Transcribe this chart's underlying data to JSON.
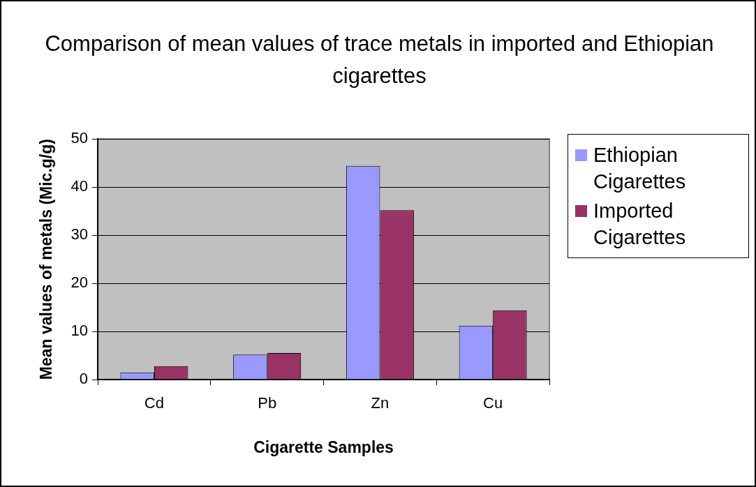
{
  "chart_data": {
    "type": "bar",
    "title": "Comparison of mean values of trace metals in imported and Ethiopian cigarettes",
    "xlabel": "Cigarette Samples",
    "ylabel": "Mean values of metals (Mic.g/g)",
    "categories": [
      "Cd",
      "Pb",
      "Zn",
      "Cu"
    ],
    "series": [
      {
        "name": "Ethiopian Cigarettes",
        "color": "#9999ff",
        "values": [
          1.5,
          5.2,
          44.4,
          11.2
        ]
      },
      {
        "name": "Imported Cigarettes",
        "color": "#993366",
        "values": [
          2.8,
          5.5,
          35.2,
          14.4
        ]
      }
    ],
    "ylim": [
      0,
      50
    ],
    "yticks": [
      0,
      10,
      20,
      30,
      40,
      50
    ],
    "grid": "y",
    "legend": "right"
  }
}
